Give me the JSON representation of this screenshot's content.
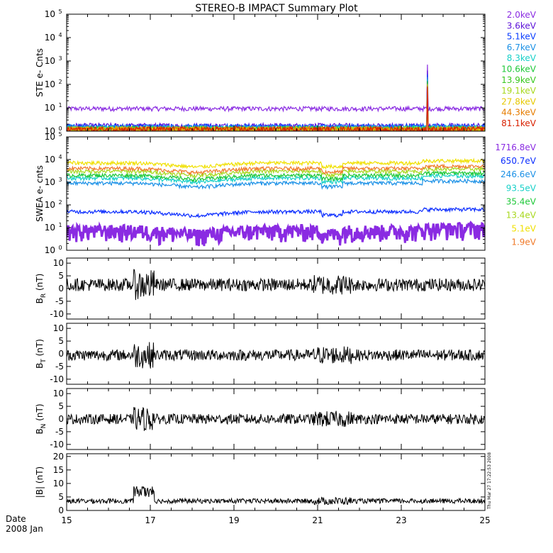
{
  "chart_data": {
    "title": "STEREO-B IMPACT Summary Plot",
    "type": "line",
    "x_ticks": [
      "15",
      "17",
      "19",
      "21",
      "23",
      "25"
    ],
    "x_range": [
      15,
      25
    ],
    "date_label": "Date",
    "date_year_month": "2008 Jan",
    "timestamp": "Thu Mar 27 17:22:53 2008",
    "panels": [
      {
        "id": "ste",
        "ylabel": "STE e- Cnts",
        "scale": "log",
        "ylim": [
          1,
          100000
        ],
        "ytick_exponents": [
          "0",
          "1",
          "2",
          "3",
          "4",
          "5"
        ],
        "series": [
          {
            "name": "2.0keV",
            "color": "#8a2be2",
            "level": 9
          },
          {
            "name": "3.6keV",
            "color": "#5b10d8",
            "level": 1.4
          },
          {
            "name": "5.1keV",
            "color": "#0a3cff",
            "level": 1.3
          },
          {
            "name": "6.7keV",
            "color": "#1a90e6",
            "level": 1.2
          },
          {
            "name": "8.3keV",
            "color": "#17d0c8",
            "level": 1.1
          },
          {
            "name": "10.6keV",
            "color": "#1ec838",
            "level": 1.05
          },
          {
            "name": "13.9keV",
            "color": "#38c81e",
            "level": 1.0
          },
          {
            "name": "19.1keV",
            "color": "#a8d81e",
            "level": 1.0
          },
          {
            "name": "27.8keV",
            "color": "#e6c800",
            "level": 1.0
          },
          {
            "name": "44.3keV",
            "color": "#e67c00",
            "level": 1.0
          },
          {
            "name": "81.1keV",
            "color": "#d82000",
            "level": 1.0
          }
        ],
        "spike": {
          "x": 23.62,
          "peak": 700
        }
      },
      {
        "id": "swea",
        "ylabel": "SWEA e- cnts",
        "scale": "log",
        "ylim": [
          1,
          100000
        ],
        "ytick_exponents": [
          "0",
          "1",
          "2",
          "3",
          "4",
          "5"
        ],
        "series": [
          {
            "name": "1716.8eV",
            "color": "#8a2be2",
            "level": 5
          },
          {
            "name": "650.7eV",
            "color": "#0a2cff",
            "level": 50
          },
          {
            "name": "246.6eV",
            "color": "#1a90e6",
            "level": 900
          },
          {
            "name": "93.5eV",
            "color": "#17d0c8",
            "level": 1500
          },
          {
            "name": "35.4eV",
            "color": "#1ec838",
            "level": 2000
          },
          {
            "name": "13.4eV",
            "color": "#a8d81e",
            "level": 3000
          },
          {
            "name": "5.1eV",
            "color": "#f0e000",
            "level": 7000
          },
          {
            "name": "1.9eV",
            "color": "#f07a2a",
            "level": 4000
          }
        ]
      },
      {
        "id": "br",
        "ylabel_main": "B",
        "ylabel_sub": "R",
        "ylabel_unit": " (nT)",
        "scale": "linear",
        "ylim": [
          -12,
          12
        ],
        "yticks": [
          "-10",
          "-5",
          "0",
          "5",
          "10"
        ],
        "level": 1.5,
        "amp": 2.5
      },
      {
        "id": "bt",
        "ylabel_main": "B",
        "ylabel_sub": "T",
        "ylabel_unit": " (nT)",
        "scale": "linear",
        "ylim": [
          -12,
          12
        ],
        "yticks": [
          "-10",
          "-5",
          "0",
          "5",
          "10"
        ],
        "level": -0.5,
        "amp": 2.2
      },
      {
        "id": "bn",
        "ylabel_main": "B",
        "ylabel_sub": "N",
        "ylabel_unit": " (nT)",
        "scale": "linear",
        "ylim": [
          -12,
          12
        ],
        "yticks": [
          "-10",
          "-5",
          "0",
          "5",
          "10"
        ],
        "level": 0,
        "amp": 2.0
      },
      {
        "id": "bmag",
        "ylabel": "|B| (nT)",
        "scale": "linear",
        "ylim": [
          0,
          21
        ],
        "yticks": [
          "0",
          "5",
          "10",
          "15",
          "20"
        ],
        "level": 3.5,
        "amp": 0.9
      }
    ]
  }
}
